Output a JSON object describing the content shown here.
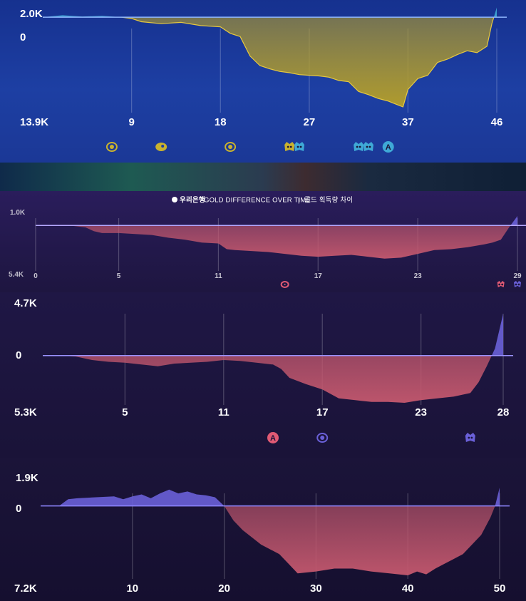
{
  "header": {
    "sponsor": "우리은행",
    "title": "GOLD DIFFERENCE OVER TIME",
    "separator": "|",
    "title_kr": "골드 획득량 차이"
  },
  "colors": {
    "panel1_neg": "#b7a027",
    "panel1_pos": "#3fa9d6",
    "red_neg": "#c4586e",
    "blue_pos": "#6a60d8",
    "baseline": "#7a8fd8"
  },
  "chart_data": [
    {
      "type": "area",
      "ymax_label": "2.0K",
      "zero_label": "0",
      "ymin_label": "13.9K",
      "ylim": [
        -13900,
        2000
      ],
      "xlim": [
        0,
        46
      ],
      "x_ticks": [
        "9",
        "18",
        "27",
        "37",
        "46"
      ],
      "x_tick_values": [
        9,
        18,
        27,
        37,
        46
      ],
      "x": [
        0,
        2,
        4,
        6,
        8,
        9,
        10,
        12,
        14,
        16,
        18,
        19,
        20,
        21,
        22,
        23,
        24,
        25,
        26,
        27,
        28,
        29,
        30,
        31,
        32,
        33,
        34,
        35,
        36,
        36.5,
        37,
        38,
        39,
        40,
        41,
        42,
        43,
        44,
        45,
        45.5,
        46
      ],
      "y": [
        0,
        300,
        100,
        200,
        0,
        -200,
        -700,
        -1000,
        -800,
        -1300,
        -1500,
        -2500,
        -3000,
        -6000,
        -7500,
        -8000,
        -8400,
        -8600,
        -8900,
        -9000,
        -9100,
        -9300,
        -9800,
        -10000,
        -11500,
        -12000,
        -12600,
        -13000,
        -13600,
        -13900,
        -11200,
        -9500,
        -9000,
        -7000,
        -6500,
        -5800,
        -5200,
        -5500,
        -4500,
        -1000,
        1500
      ],
      "markers": [
        {
          "x": 7,
          "icon": "dragon-icon",
          "color": "#c9b22e"
        },
        {
          "x": 12,
          "icon": "rift-herald-icon",
          "color": "#c9b22e"
        },
        {
          "x": 19,
          "icon": "dragon-icon",
          "color": "#c9b22e"
        },
        {
          "x": 25,
          "icon": "baron-icon",
          "color": "#c9b22e"
        },
        {
          "x": 26,
          "icon": "baron-icon",
          "color": "#3fa9d6"
        },
        {
          "x": 32,
          "icon": "baron-icon",
          "color": "#3fa9d6"
        },
        {
          "x": 33,
          "icon": "baron-icon",
          "color": "#3fa9d6"
        },
        {
          "x": 35,
          "icon": "atakhan-icon",
          "color": "#3fa9d6",
          "text": "A"
        }
      ]
    },
    {
      "type": "area",
      "ymax_label": "1.0K",
      "ymin_label": "5.4K",
      "ylim": [
        -5400,
        1000
      ],
      "xlim": [
        0,
        29
      ],
      "x_ticks": [
        "0",
        "5",
        "11",
        "17",
        "23",
        "29"
      ],
      "x_tick_values": [
        0,
        5,
        11,
        17,
        23,
        29
      ],
      "x": [
        0,
        1,
        2,
        3,
        3.5,
        4,
        5,
        6,
        7,
        8,
        9,
        10,
        11,
        11.5,
        12,
        13,
        14,
        15,
        16,
        17,
        18,
        19,
        20,
        21,
        22,
        23,
        24,
        25,
        26,
        27,
        27.5,
        28,
        28.5,
        29
      ],
      "y": [
        0,
        0,
        0,
        -200,
        -600,
        -800,
        -800,
        -900,
        -1000,
        -1300,
        -1500,
        -1800,
        -1900,
        -2500,
        -2600,
        -2700,
        -2800,
        -3000,
        -3200,
        -3300,
        -3200,
        -3100,
        -3300,
        -3500,
        -3400,
        -3000,
        -2600,
        -2500,
        -2300,
        -2000,
        -1800,
        -1500,
        -200,
        1000
      ],
      "markers": [
        {
          "x": 15,
          "icon": "dragon-icon",
          "color": "#e05a74"
        },
        {
          "x": 28,
          "icon": "baron-icon",
          "color": "#e05a74"
        },
        {
          "x": 29,
          "icon": "baron-icon",
          "color": "#6a60d8"
        }
      ]
    },
    {
      "type": "area",
      "ymax_label": "4.7K",
      "zero_label": "0",
      "ymin_label": "5.3K",
      "ylim": [
        -5300,
        4700
      ],
      "xlim": [
        0,
        28
      ],
      "x_ticks": [
        "5",
        "11",
        "17",
        "23",
        "28"
      ],
      "x_tick_values": [
        5,
        11,
        17,
        23,
        28
      ],
      "x": [
        0,
        1,
        2,
        3,
        4,
        5,
        6,
        7,
        8,
        9,
        10,
        11,
        12,
        13,
        14,
        14.5,
        15,
        16,
        17,
        18,
        19,
        20,
        21,
        22,
        23,
        24,
        25,
        26,
        26.5,
        27,
        27.5,
        28
      ],
      "y": [
        0,
        0,
        -100,
        -500,
        -700,
        -800,
        -1000,
        -1200,
        -900,
        -800,
        -700,
        -500,
        -600,
        -800,
        -1000,
        -1500,
        -2500,
        -3200,
        -3800,
        -4800,
        -5000,
        -5200,
        -5200,
        -5300,
        -5000,
        -4800,
        -4600,
        -4200,
        -3000,
        -1200,
        800,
        4700
      ],
      "markers": [
        {
          "x": 14,
          "icon": "atakhan-icon",
          "color": "#e05a74",
          "text": "A"
        },
        {
          "x": 17,
          "icon": "dragon-icon",
          "color": "#6a60d8"
        },
        {
          "x": 26,
          "icon": "baron-icon",
          "color": "#6a60d8"
        }
      ]
    },
    {
      "type": "area",
      "ymax_label": "1.9K",
      "zero_label": "0",
      "ymin_label": "7.2K",
      "ylim": [
        -7200,
        1900
      ],
      "xlim": [
        0,
        50
      ],
      "x_ticks": [
        "10",
        "20",
        "30",
        "40",
        "50"
      ],
      "x_tick_values": [
        10,
        20,
        30,
        40,
        50
      ],
      "x": [
        0,
        2,
        3,
        4,
        6,
        8,
        9,
        10,
        11,
        12,
        13,
        14,
        15,
        16,
        17,
        18,
        19,
        20,
        21,
        22,
        24,
        26,
        27,
        28,
        30,
        32,
        34,
        36,
        38,
        40,
        41,
        42,
        43,
        44,
        46,
        48,
        49,
        49.5,
        50
      ],
      "y": [
        0,
        0,
        700,
        800,
        900,
        1000,
        700,
        1000,
        1200,
        800,
        1300,
        1700,
        1300,
        1500,
        1200,
        1100,
        900,
        0,
        -1500,
        -2500,
        -4000,
        -5000,
        -6000,
        -7000,
        -6800,
        -6500,
        -6500,
        -6800,
        -7000,
        -7200,
        -6800,
        -7100,
        -6500,
        -6000,
        -5000,
        -3000,
        -1200,
        0,
        1900
      ],
      "markers": []
    }
  ]
}
